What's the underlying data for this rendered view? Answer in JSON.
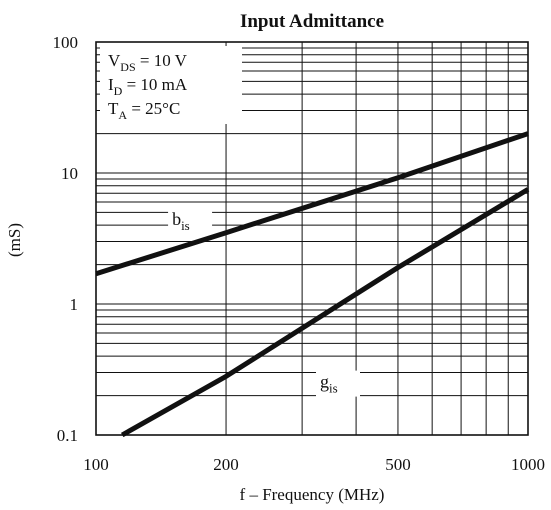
{
  "chart_data": {
    "type": "line",
    "title": "Input Admittance",
    "xlabel": "f – Frequency (MHz)",
    "ylabel": "(mS)",
    "x_scale": "log",
    "y_scale": "log",
    "xlim": [
      100,
      1000
    ],
    "ylim": [
      0.1,
      100
    ],
    "grid": true,
    "x_ticks": [
      {
        "value": 100,
        "label": "100"
      },
      {
        "value": 200,
        "label": "200"
      },
      {
        "value": 500,
        "label": "500"
      },
      {
        "value": 1000,
        "label": "1000"
      }
    ],
    "y_ticks": [
      {
        "value": 0.1,
        "label": "0.1"
      },
      {
        "value": 1,
        "label": "1"
      },
      {
        "value": 10,
        "label": "10"
      },
      {
        "value": 100,
        "label": "100"
      }
    ],
    "conditions": [
      {
        "main": "V",
        "sub": "DS",
        "rest": " = 10 V"
      },
      {
        "main": "I",
        "sub": "D",
        "rest": " = 10 mA"
      },
      {
        "main": "T",
        "sub": "A",
        "rest": " = 25°C"
      }
    ],
    "series": [
      {
        "label_main": "b",
        "label_sub": "is",
        "label_at": {
          "x": 150,
          "y": 4.0
        },
        "points": [
          {
            "x": 100,
            "y": 1.7
          },
          {
            "x": 200,
            "y": 3.5
          },
          {
            "x": 500,
            "y": 9.2
          },
          {
            "x": 1000,
            "y": 20
          }
        ]
      },
      {
        "label_main": "g",
        "label_sub": "is",
        "label_at": {
          "x": 330,
          "y": 0.23
        },
        "points": [
          {
            "x": 115,
            "y": 0.1
          },
          {
            "x": 200,
            "y": 0.28
          },
          {
            "x": 500,
            "y": 1.9
          },
          {
            "x": 1000,
            "y": 7.5
          }
        ]
      }
    ]
  }
}
